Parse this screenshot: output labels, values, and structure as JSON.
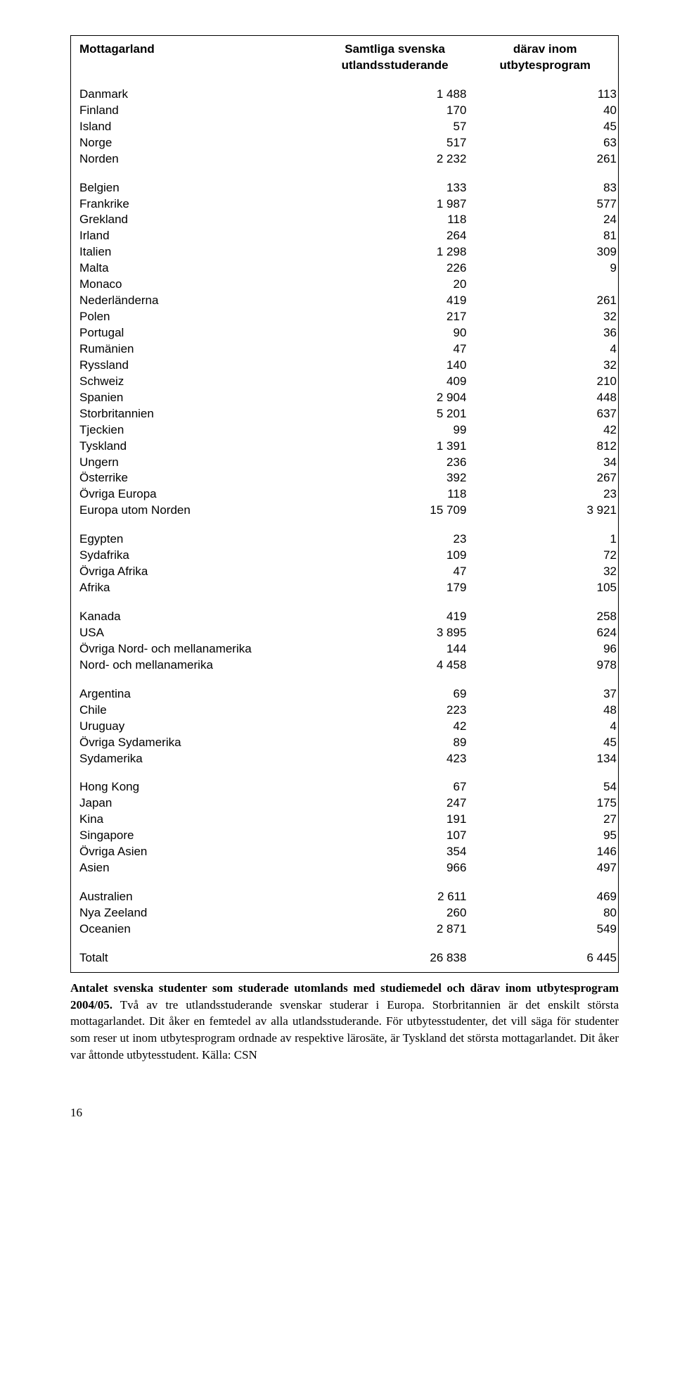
{
  "header": {
    "col1": "Mottagarland",
    "col2a": "Samtliga svenska",
    "col2b": "utlandsstuderande",
    "col3a": "därav inom",
    "col3b": "utbytesprogram"
  },
  "groups": [
    [
      {
        "n": "Danmark",
        "a": "1 488",
        "b": "113"
      },
      {
        "n": "Finland",
        "a": "170",
        "b": "40"
      },
      {
        "n": "Island",
        "a": "57",
        "b": "45"
      },
      {
        "n": "Norge",
        "a": "517",
        "b": "63"
      },
      {
        "n": "Norden",
        "a": "2 232",
        "b": "261"
      }
    ],
    [
      {
        "n": "Belgien",
        "a": "133",
        "b": "83"
      },
      {
        "n": "Frankrike",
        "a": "1 987",
        "b": "577"
      },
      {
        "n": "Grekland",
        "a": "118",
        "b": "24"
      },
      {
        "n": "Irland",
        "a": "264",
        "b": "81"
      },
      {
        "n": "Italien",
        "a": "1 298",
        "b": "309"
      },
      {
        "n": "Malta",
        "a": "226",
        "b": "9"
      },
      {
        "n": "Monaco",
        "a": "20",
        "b": ""
      },
      {
        "n": "Nederländerna",
        "a": "419",
        "b": "261"
      },
      {
        "n": "Polen",
        "a": "217",
        "b": "32"
      },
      {
        "n": "Portugal",
        "a": "90",
        "b": "36"
      },
      {
        "n": "Rumänien",
        "a": "47",
        "b": "4"
      },
      {
        "n": "Ryssland",
        "a": "140",
        "b": "32"
      },
      {
        "n": "Schweiz",
        "a": "409",
        "b": "210"
      },
      {
        "n": "Spanien",
        "a": "2 904",
        "b": "448"
      },
      {
        "n": "Storbritannien",
        "a": "5 201",
        "b": "637"
      },
      {
        "n": "Tjeckien",
        "a": "99",
        "b": "42"
      },
      {
        "n": "Tyskland",
        "a": "1 391",
        "b": "812"
      },
      {
        "n": "Ungern",
        "a": "236",
        "b": "34"
      },
      {
        "n": "Österrike",
        "a": "392",
        "b": "267"
      },
      {
        "n": "Övriga Europa",
        "a": "118",
        "b": "23"
      },
      {
        "n": "Europa utom Norden",
        "a": "15 709",
        "b": "3 921"
      }
    ],
    [
      {
        "n": "Egypten",
        "a": "23",
        "b": "1"
      },
      {
        "n": "Sydafrika",
        "a": "109",
        "b": "72"
      },
      {
        "n": "Övriga Afrika",
        "a": "47",
        "b": "32"
      },
      {
        "n": "Afrika",
        "a": "179",
        "b": "105"
      }
    ],
    [
      {
        "n": "Kanada",
        "a": "419",
        "b": "258"
      },
      {
        "n": "USA",
        "a": "3 895",
        "b": "624"
      },
      {
        "n": "Övriga Nord- och mellanamerika",
        "a": "144",
        "b": "96"
      },
      {
        "n": "Nord- och mellanamerika",
        "a": "4 458",
        "b": "978"
      }
    ],
    [
      {
        "n": "Argentina",
        "a": "69",
        "b": "37"
      },
      {
        "n": "Chile",
        "a": "223",
        "b": "48"
      },
      {
        "n": "Uruguay",
        "a": "42",
        "b": "4"
      },
      {
        "n": "Övriga Sydamerika",
        "a": "89",
        "b": "45"
      },
      {
        "n": "Sydamerika",
        "a": "423",
        "b": "134"
      }
    ],
    [
      {
        "n": "Hong Kong",
        "a": "67",
        "b": "54"
      },
      {
        "n": "Japan",
        "a": "247",
        "b": "175"
      },
      {
        "n": "Kina",
        "a": "191",
        "b": "27"
      },
      {
        "n": "Singapore",
        "a": "107",
        "b": "95"
      },
      {
        "n": "Övriga Asien",
        "a": "354",
        "b": "146"
      },
      {
        "n": "Asien",
        "a": "966",
        "b": "497"
      }
    ],
    [
      {
        "n": "Australien",
        "a": "2 611",
        "b": "469"
      },
      {
        "n": "Nya Zeeland",
        "a": "260",
        "b": "80"
      },
      {
        "n": "Oceanien",
        "a": "2 871",
        "b": "549"
      }
    ],
    [
      {
        "n": "Totalt",
        "a": "26 838",
        "b": "6 445"
      }
    ]
  ],
  "caption": {
    "lead": "Antalet svenska studenter som studerade utomlands med studiemedel och därav inom utbytesprogram 2004/05.",
    "rest": " Två av tre utlandsstuderande svenskar studerar i Europa. Storbritannien är det enskilt största mottagarlandet. Dit åker en femtedel av alla utlandsstuderande. För utbytesstudenter, det vill säga för studenter som reser ut inom utbytesprogram ordnade av respektive lärosäte, är Tyskland det största mottagarlandet. Dit åker var åttonde utbytesstudent. Källa: CSN"
  },
  "pagenum": "16"
}
